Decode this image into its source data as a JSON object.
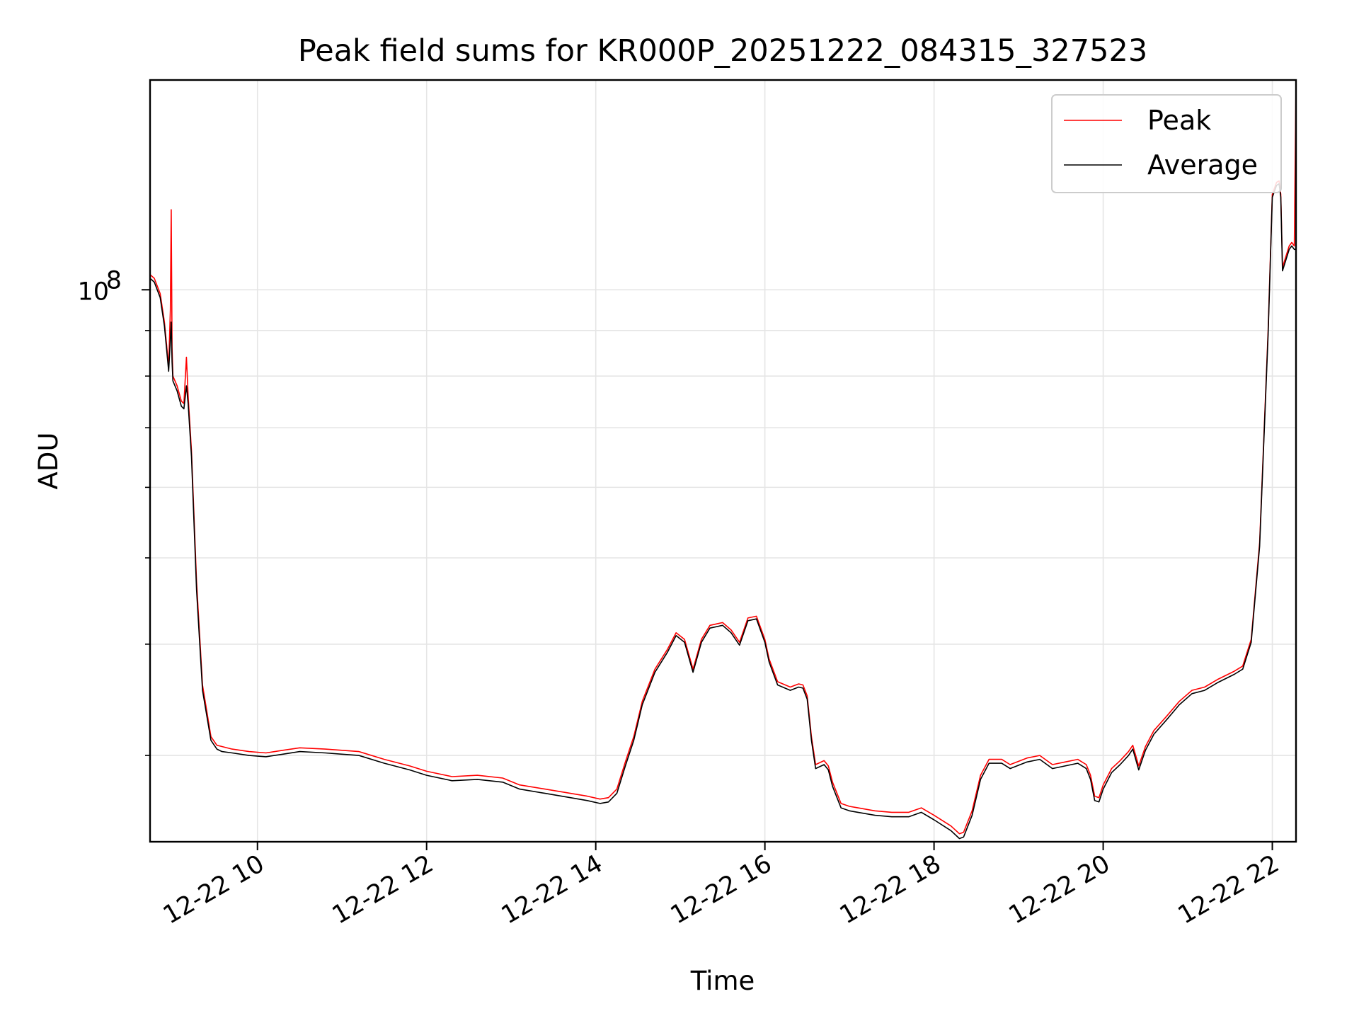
{
  "chart_data": {
    "type": "line",
    "title": "Peak field sums for KR000P_20251222_084315_327523",
    "xlabel": "Time",
    "ylabel": "ADU",
    "yscale": "log",
    "xlim_hours": [
      8.73,
      22.28
    ],
    "ylim": [
      24000000,
      172000000
    ],
    "grid": true,
    "legend_position": "top-right",
    "x_ticks": [
      {
        "value": 10,
        "label": "12-22 10"
      },
      {
        "value": 12,
        "label": "12-22 12"
      },
      {
        "value": 14,
        "label": "12-22 14"
      },
      {
        "value": 16,
        "label": "12-22 16"
      },
      {
        "value": 18,
        "label": "12-22 18"
      },
      {
        "value": 20,
        "label": "12-22 20"
      },
      {
        "value": 22,
        "label": "12-22 22"
      }
    ],
    "y_ticks_major": [
      {
        "value": 100000000,
        "base": "10",
        "exponent": "8"
      }
    ],
    "y_ticks_minor": [
      30000000,
      40000000,
      50000000,
      60000000,
      70000000,
      80000000,
      90000000
    ],
    "series": [
      {
        "name": "Peak",
        "color": "#ff0000",
        "x_hours": [
          8.73,
          8.78,
          8.85,
          8.9,
          8.95,
          8.97,
          8.98,
          8.99,
          9.0,
          9.05,
          9.1,
          9.13,
          9.16,
          9.18,
          9.22,
          9.28,
          9.35,
          9.45,
          9.52,
          9.58,
          9.7,
          9.9,
          10.1,
          10.3,
          10.5,
          10.8,
          11.0,
          11.2,
          11.5,
          11.8,
          12.0,
          12.3,
          12.6,
          12.9,
          13.1,
          13.4,
          13.7,
          13.9,
          14.05,
          14.15,
          14.25,
          14.35,
          14.45,
          14.55,
          14.7,
          14.85,
          14.95,
          15.05,
          15.15,
          15.25,
          15.35,
          15.5,
          15.6,
          15.7,
          15.8,
          15.9,
          16.0,
          16.05,
          16.15,
          16.3,
          16.4,
          16.45,
          16.5,
          16.55,
          16.6,
          16.7,
          16.75,
          16.8,
          16.9,
          17.0,
          17.1,
          17.3,
          17.5,
          17.7,
          17.85,
          18.0,
          18.2,
          18.3,
          18.35,
          18.45,
          18.55,
          18.65,
          18.8,
          18.9,
          19.1,
          19.25,
          19.4,
          19.55,
          19.7,
          19.8,
          19.85,
          19.9,
          19.95,
          20.0,
          20.1,
          20.2,
          20.3,
          20.35,
          20.42,
          20.5,
          20.6,
          20.75,
          20.9,
          21.05,
          21.2,
          21.35,
          21.55,
          21.65,
          21.75,
          21.85,
          21.95,
          22.0,
          22.05,
          22.08,
          22.1,
          22.12,
          22.16,
          22.2,
          22.23,
          22.26,
          22.28
        ],
        "values": [
          104000000,
          103000000,
          99000000,
          92000000,
          82000000,
          95000000,
          123000000,
          86000000,
          80000000,
          78000000,
          75000000,
          74500000,
          84000000,
          76000000,
          66000000,
          47000000,
          36000000,
          31500000,
          30800000,
          30700000,
          30500000,
          30300000,
          30200000,
          30400000,
          30600000,
          30500000,
          30400000,
          30300000,
          29700000,
          29200000,
          28800000,
          28400000,
          28500000,
          28300000,
          27800000,
          27500000,
          27200000,
          27000000,
          26800000,
          26900000,
          27500000,
          29500000,
          31500000,
          34500000,
          37500000,
          39500000,
          41200000,
          40500000,
          37500000,
          40500000,
          42000000,
          42300000,
          41500000,
          40200000,
          42800000,
          43000000,
          40500000,
          38500000,
          36300000,
          35800000,
          36100000,
          36000000,
          35000000,
          31500000,
          29300000,
          29600000,
          29200000,
          28000000,
          26500000,
          26300000,
          26200000,
          26000000,
          25900000,
          25900000,
          26200000,
          25700000,
          25000000,
          24500000,
          24600000,
          26000000,
          28500000,
          29700000,
          29700000,
          29300000,
          29800000,
          30000000,
          29300000,
          29500000,
          29700000,
          29300000,
          28500000,
          27000000,
          26900000,
          27800000,
          29000000,
          29600000,
          30300000,
          30800000,
          29200000,
          30700000,
          32000000,
          33200000,
          34500000,
          35500000,
          35800000,
          36500000,
          37300000,
          37800000,
          40500000,
          52000000,
          90000000,
          128000000,
          132000000,
          132500000,
          128000000,
          106000000,
          109000000,
          112000000,
          113000000,
          112000000,
          172000000
        ]
      },
      {
        "name": "Average",
        "color": "#000000",
        "x_hours": [
          8.73,
          8.78,
          8.85,
          8.9,
          8.95,
          8.97,
          8.98,
          8.99,
          9.0,
          9.05,
          9.1,
          9.13,
          9.16,
          9.18,
          9.22,
          9.28,
          9.35,
          9.45,
          9.52,
          9.58,
          9.7,
          9.9,
          10.1,
          10.3,
          10.5,
          10.8,
          11.0,
          11.2,
          11.5,
          11.8,
          12.0,
          12.3,
          12.6,
          12.9,
          13.1,
          13.4,
          13.7,
          13.9,
          14.05,
          14.15,
          14.25,
          14.35,
          14.45,
          14.55,
          14.7,
          14.85,
          14.95,
          15.05,
          15.15,
          15.25,
          15.35,
          15.5,
          15.6,
          15.7,
          15.8,
          15.9,
          16.0,
          16.05,
          16.15,
          16.3,
          16.4,
          16.45,
          16.5,
          16.55,
          16.6,
          16.7,
          16.75,
          16.8,
          16.9,
          17.0,
          17.1,
          17.3,
          17.5,
          17.7,
          17.85,
          18.0,
          18.2,
          18.3,
          18.35,
          18.45,
          18.55,
          18.65,
          18.8,
          18.9,
          19.1,
          19.25,
          19.4,
          19.55,
          19.7,
          19.8,
          19.85,
          19.9,
          19.95,
          20.0,
          20.1,
          20.2,
          20.3,
          20.35,
          20.42,
          20.5,
          20.6,
          20.75,
          20.9,
          21.05,
          21.2,
          21.35,
          21.55,
          21.65,
          21.75,
          21.85,
          21.95,
          22.0,
          22.05,
          22.08,
          22.1,
          22.12,
          22.16,
          22.2,
          22.23,
          22.26,
          22.28
        ],
        "values": [
          103000000,
          102000000,
          98000000,
          91000000,
          81000000,
          88000000,
          92000000,
          83000000,
          79000000,
          77000000,
          74000000,
          73500000,
          78000000,
          74500000,
          65000000,
          46000000,
          35500000,
          31200000,
          30500000,
          30300000,
          30200000,
          30000000,
          29900000,
          30100000,
          30300000,
          30200000,
          30100000,
          30000000,
          29400000,
          28900000,
          28500000,
          28100000,
          28200000,
          28000000,
          27500000,
          27200000,
          26900000,
          26700000,
          26500000,
          26600000,
          27200000,
          29200000,
          31200000,
          34200000,
          37200000,
          39200000,
          40900000,
          40200000,
          37200000,
          40200000,
          41700000,
          42000000,
          41200000,
          39900000,
          42500000,
          42700000,
          40200000,
          38200000,
          36000000,
          35500000,
          35800000,
          35700000,
          34700000,
          31200000,
          29000000,
          29300000,
          28900000,
          27700000,
          26200000,
          26000000,
          25900000,
          25700000,
          25600000,
          25600000,
          25900000,
          25400000,
          24700000,
          24200000,
          24300000,
          25700000,
          28200000,
          29400000,
          29400000,
          29000000,
          29500000,
          29700000,
          29000000,
          29200000,
          29400000,
          29000000,
          28200000,
          26700000,
          26600000,
          27500000,
          28700000,
          29300000,
          30000000,
          30500000,
          28900000,
          30400000,
          31700000,
          32900000,
          34200000,
          35200000,
          35500000,
          36200000,
          37000000,
          37500000,
          40200000,
          51500000,
          89000000,
          127000000,
          131000000,
          131500000,
          127000000,
          105000000,
          108000000,
          111000000,
          112000000,
          111000000,
          111000000
        ]
      }
    ]
  }
}
